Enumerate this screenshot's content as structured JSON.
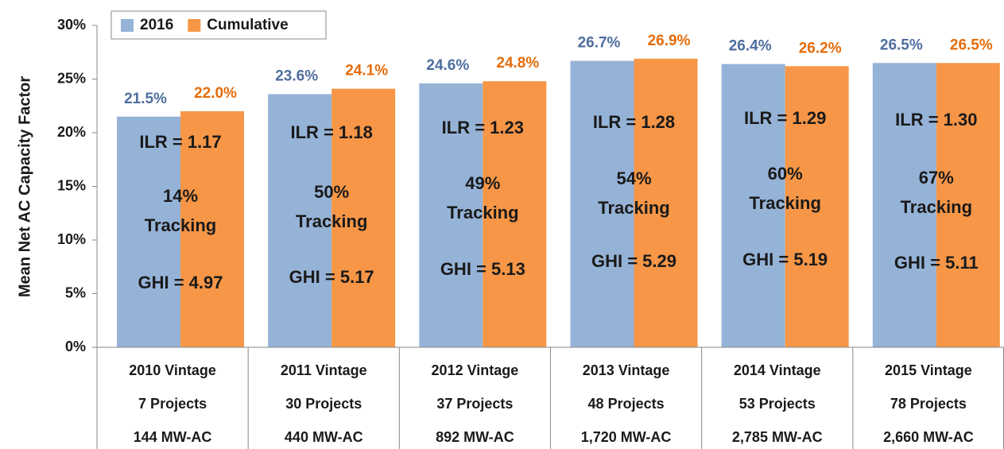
{
  "chart_data": {
    "type": "bar",
    "y_label": "Mean Net AC Capacity Factor",
    "categories": [
      "2010 Vintage",
      "2011 Vintage",
      "2012 Vintage",
      "2013 Vintage",
      "2014 Vintage",
      "2015 Vintage"
    ],
    "projects": [
      "7 Projects",
      "30 Projects",
      "37 Projects",
      "48 Projects",
      "53 Projects",
      "78 Projects"
    ],
    "capacity": [
      "144 MW-AC",
      "440 MW-AC",
      "892 MW-AC",
      "1,720 MW-AC",
      "2,785 MW-AC",
      "2,660 MW-AC"
    ],
    "series": [
      {
        "name": "2016",
        "color": "#95b3d7",
        "label_color": "#4f6e9e",
        "values": [
          21.5,
          23.6,
          24.6,
          26.7,
          26.4,
          26.5
        ],
        "value_labels": [
          "21.5%",
          "23.6%",
          "24.6%",
          "26.7%",
          "26.4%",
          "26.5%"
        ]
      },
      {
        "name": "Cumulative",
        "color": "#f79646",
        "label_color": "#e46c0a",
        "values": [
          22.0,
          24.1,
          24.8,
          26.9,
          26.2,
          26.5
        ],
        "value_labels": [
          "22.0%",
          "24.1%",
          "24.8%",
          "26.9%",
          "26.2%",
          "26.5%"
        ]
      }
    ],
    "annotations": [
      {
        "ilr": "ILR = 1.17",
        "tracking": [
          "14%",
          "Tracking"
        ],
        "ghi": "GHI = 4.97"
      },
      {
        "ilr": "ILR = 1.18",
        "tracking": [
          "50%",
          "Tracking"
        ],
        "ghi": "GHI = 5.17"
      },
      {
        "ilr": "ILR = 1.23",
        "tracking": [
          "49%",
          "Tracking"
        ],
        "ghi": "GHI = 5.13"
      },
      {
        "ilr": "ILR = 1.28",
        "tracking": [
          "54%",
          "Tracking"
        ],
        "ghi": "GHI = 5.29"
      },
      {
        "ilr": "ILR = 1.29",
        "tracking": [
          "60%",
          "Tracking"
        ],
        "ghi": "GHI = 5.19"
      },
      {
        "ilr": "ILR = 1.30",
        "tracking": [
          "67%",
          "Tracking"
        ],
        "ghi": "GHI = 5.11"
      }
    ],
    "ylim": [
      0,
      30
    ],
    "yticks": [
      {
        "value": 0,
        "label": "0%"
      },
      {
        "value": 5,
        "label": "5%"
      },
      {
        "value": 10,
        "label": "10%"
      },
      {
        "value": 15,
        "label": "15%"
      },
      {
        "value": 20,
        "label": "20%"
      },
      {
        "value": 25,
        "label": "25%"
      },
      {
        "value": 30,
        "label": "30%"
      }
    ],
    "legend": "top-left"
  }
}
